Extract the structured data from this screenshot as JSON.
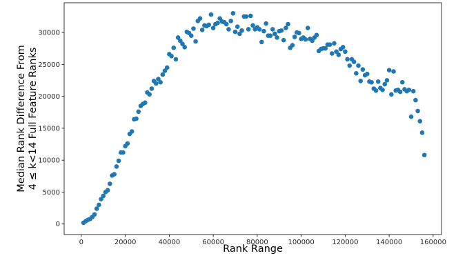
{
  "chart_data": {
    "type": "scatter",
    "title": "",
    "xlabel": "Rank Range",
    "ylabel_line1": "Median Rank Difference From",
    "ylabel_line2": "4 ≤ k<14 Full Feature Ranks",
    "xlim": [
      -7800,
      163800
    ],
    "ylim": [
      -1650,
      34650
    ],
    "xticks": [
      0,
      20000,
      40000,
      60000,
      80000,
      100000,
      120000,
      140000,
      160000
    ],
    "yticks": [
      0,
      5000,
      10000,
      15000,
      20000,
      25000,
      30000
    ],
    "grid": false,
    "marker_color": "#1f77b4",
    "points": [
      [
        1000,
        200
      ],
      [
        2000,
        450
      ],
      [
        3000,
        650
      ],
      [
        4000,
        800
      ],
      [
        5000,
        1100
      ],
      [
        6000,
        1500
      ],
      [
        7000,
        2400
      ],
      [
        8000,
        3000
      ],
      [
        9000,
        3900
      ],
      [
        10000,
        4400
      ],
      [
        11000,
        5000
      ],
      [
        12000,
        5300
      ],
      [
        13000,
        6300
      ],
      [
        14000,
        7600
      ],
      [
        15000,
        7800
      ],
      [
        16000,
        9000
      ],
      [
        17000,
        9900
      ],
      [
        18000,
        11200
      ],
      [
        19000,
        11200
      ],
      [
        20000,
        12200
      ],
      [
        21000,
        12600
      ],
      [
        22000,
        14100
      ],
      [
        23000,
        14500
      ],
      [
        24000,
        16400
      ],
      [
        25000,
        16500
      ],
      [
        26000,
        17600
      ],
      [
        27000,
        18500
      ],
      [
        28000,
        18800
      ],
      [
        29000,
        19000
      ],
      [
        30000,
        20600
      ],
      [
        31000,
        20300
      ],
      [
        32000,
        21200
      ],
      [
        33000,
        22400
      ],
      [
        34000,
        22000
      ],
      [
        35000,
        22700
      ],
      [
        36000,
        22200
      ],
      [
        37000,
        23400
      ],
      [
        38000,
        24000
      ],
      [
        39000,
        24500
      ],
      [
        40000,
        26600
      ],
      [
        41000,
        26300
      ],
      [
        42000,
        27600
      ],
      [
        43000,
        25800
      ],
      [
        44000,
        29200
      ],
      [
        45000,
        28700
      ],
      [
        46000,
        28200
      ],
      [
        47000,
        27700
      ],
      [
        48000,
        30100
      ],
      [
        49000,
        29900
      ],
      [
        50000,
        29500
      ],
      [
        51000,
        30600
      ],
      [
        52000,
        28600
      ],
      [
        53000,
        31800
      ],
      [
        54000,
        32200
      ],
      [
        55000,
        30400
      ],
      [
        56000,
        31100
      ],
      [
        57000,
        31000
      ],
      [
        58000,
        31200
      ],
      [
        59000,
        32800
      ],
      [
        60000,
        30700
      ],
      [
        61000,
        31300
      ],
      [
        62000,
        31500
      ],
      [
        63000,
        32200
      ],
      [
        64000,
        31700
      ],
      [
        65000,
        31600
      ],
      [
        66000,
        31300
      ],
      [
        67000,
        30500
      ],
      [
        68000,
        31800
      ],
      [
        69000,
        33000
      ],
      [
        70000,
        30100
      ],
      [
        71000,
        30900
      ],
      [
        72000,
        29800
      ],
      [
        73000,
        30300
      ],
      [
        74000,
        32500
      ],
      [
        75000,
        32500
      ],
      [
        76000,
        30500
      ],
      [
        77000,
        32600
      ],
      [
        78000,
        31100
      ],
      [
        79000,
        30500
      ],
      [
        80000,
        30800
      ],
      [
        81000,
        30500
      ],
      [
        82000,
        28500
      ],
      [
        83000,
        30200
      ],
      [
        84000,
        31400
      ],
      [
        85000,
        29500
      ],
      [
        86000,
        29500
      ],
      [
        87000,
        30500
      ],
      [
        88000,
        29800
      ],
      [
        89000,
        29200
      ],
      [
        90000,
        30200
      ],
      [
        91000,
        30300
      ],
      [
        92000,
        28800
      ],
      [
        93000,
        30700
      ],
      [
        94000,
        31300
      ],
      [
        95000,
        27600
      ],
      [
        96000,
        28000
      ],
      [
        97000,
        29300
      ],
      [
        98000,
        30000
      ],
      [
        99000,
        29900
      ],
      [
        100000,
        29000
      ],
      [
        101000,
        29200
      ],
      [
        102000,
        28900
      ],
      [
        103000,
        30700
      ],
      [
        104000,
        29000
      ],
      [
        105000,
        28700
      ],
      [
        106000,
        29200
      ],
      [
        107000,
        29600
      ],
      [
        108000,
        27100
      ],
      [
        109000,
        27400
      ],
      [
        110000,
        27500
      ],
      [
        111000,
        27500
      ],
      [
        112000,
        28100
      ],
      [
        113000,
        28100
      ],
      [
        114000,
        26700
      ],
      [
        115000,
        28300
      ],
      [
        116000,
        27000
      ],
      [
        117000,
        26500
      ],
      [
        118000,
        27400
      ],
      [
        119000,
        27700
      ],
      [
        120000,
        27000
      ],
      [
        121000,
        25800
      ],
      [
        122000,
        24800
      ],
      [
        123000,
        25800
      ],
      [
        124000,
        25400
      ],
      [
        125000,
        23600
      ],
      [
        126000,
        24800
      ],
      [
        127000,
        22400
      ],
      [
        128000,
        24200
      ],
      [
        129000,
        23300
      ],
      [
        130000,
        23500
      ],
      [
        131000,
        22300
      ],
      [
        132000,
        22200
      ],
      [
        133000,
        21200
      ],
      [
        134000,
        20900
      ],
      [
        135000,
        22300
      ],
      [
        136000,
        21300
      ],
      [
        137000,
        21000
      ],
      [
        138000,
        21900
      ],
      [
        139000,
        22500
      ],
      [
        140000,
        24100
      ],
      [
        141000,
        20300
      ],
      [
        142000,
        23900
      ],
      [
        143000,
        20900
      ],
      [
        144000,
        21000
      ],
      [
        145000,
        20700
      ],
      [
        146000,
        22200
      ],
      [
        147000,
        21100
      ],
      [
        148000,
        20800
      ],
      [
        149000,
        21000
      ],
      [
        150000,
        16800
      ],
      [
        151000,
        20800
      ],
      [
        152000,
        19400
      ],
      [
        153000,
        17700
      ],
      [
        154000,
        16100
      ],
      [
        155000,
        14300
      ],
      [
        156000,
        10800
      ]
    ]
  }
}
